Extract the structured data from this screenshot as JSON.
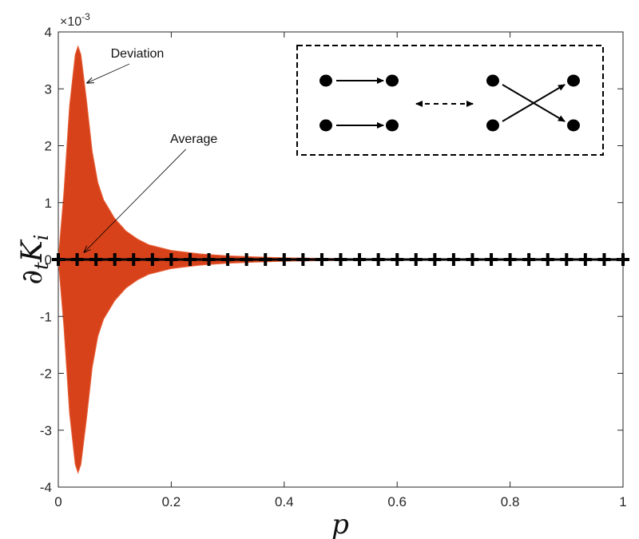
{
  "chart_data": {
    "type": "area",
    "title": "",
    "xlabel": "p",
    "ylabel_main": "∂",
    "ylabel_sub_t": "t",
    "ylabel_K": "K",
    "ylabel_sub_i": "i",
    "xlim": [
      0,
      1
    ],
    "ylim": [
      -0.004,
      0.004
    ],
    "y_exponent_label": "×10",
    "y_exponent_value": "-3",
    "x_ticks": [
      0,
      0.2,
      0.4,
      0.6,
      0.8,
      1
    ],
    "x_tick_labels": [
      "0",
      "0.2",
      "0.4",
      "0.6",
      "0.8",
      "1"
    ],
    "y_ticks": [
      -4,
      -3,
      -2,
      -1,
      0,
      1,
      2,
      3,
      4
    ],
    "y_tick_labels": [
      "-4",
      "-3",
      "-2",
      "-1",
      "0",
      "1",
      "2",
      "3",
      "4"
    ],
    "series": [
      {
        "name": "Deviation",
        "color": "#d8421b",
        "x": [
          0,
          0.01,
          0.02,
          0.03,
          0.035,
          0.04,
          0.05,
          0.06,
          0.07,
          0.08,
          0.1,
          0.12,
          0.14,
          0.16,
          0.2,
          0.25,
          0.3,
          0.35,
          0.4,
          0.5,
          0.6,
          0.7,
          0.8,
          0.9,
          1.0
        ],
        "upper": [
          0.0,
          0.0012,
          0.0027,
          0.0036,
          0.00375,
          0.0036,
          0.0028,
          0.0019,
          0.00135,
          0.00105,
          0.00072,
          0.0005,
          0.00036,
          0.00026,
          0.00016,
          0.0001,
          6.5e-05,
          4.5e-05,
          3e-05,
          1.5e-05,
          8.5e-06,
          5e-06,
          3e-06,
          2e-06,
          1.5e-06
        ],
        "lower": [
          0.0,
          -0.0012,
          -0.0027,
          -0.0036,
          -0.00375,
          -0.0036,
          -0.0028,
          -0.0019,
          -0.00135,
          -0.00105,
          -0.00072,
          -0.0005,
          -0.00036,
          -0.00026,
          -0.00016,
          -0.0001,
          -6.5e-05,
          -4.5e-05,
          -3e-05,
          -1.5e-05,
          -8.5e-06,
          -5e-06,
          -3e-06,
          -2e-06,
          -1.5e-06
        ]
      },
      {
        "name": "Average",
        "color": "#000000",
        "marker": "+",
        "x": [
          0.0,
          0.0333,
          0.0667,
          0.1,
          0.1333,
          0.1667,
          0.2,
          0.2333,
          0.2667,
          0.3,
          0.3333,
          0.3667,
          0.4,
          0.4333,
          0.4667,
          0.5,
          0.5333,
          0.5667,
          0.6,
          0.6333,
          0.6667,
          0.7,
          0.7333,
          0.7667,
          0.8,
          0.8333,
          0.8667,
          0.9,
          0.9333,
          0.9667,
          1.0
        ],
        "values": [
          0,
          0,
          0,
          0,
          0,
          0,
          0,
          0,
          0,
          0,
          0,
          0,
          0,
          0,
          0,
          0,
          0,
          0,
          0,
          0,
          0,
          0,
          0,
          0,
          0,
          0,
          0,
          0,
          0,
          0,
          0
        ]
      }
    ],
    "annotations": [
      {
        "text": "Deviation",
        "x": 0.14,
        "y": 0.00355,
        "arrow_to_x": 0.05,
        "arrow_to_y": 0.0031
      },
      {
        "text": "Average",
        "x": 0.24,
        "y": 0.00205,
        "arrow_to_x": 0.045,
        "arrow_to_y": 0.00012
      }
    ],
    "inset": {
      "description": "two link-rewiring schematics connected by a dashed double arrow"
    }
  }
}
